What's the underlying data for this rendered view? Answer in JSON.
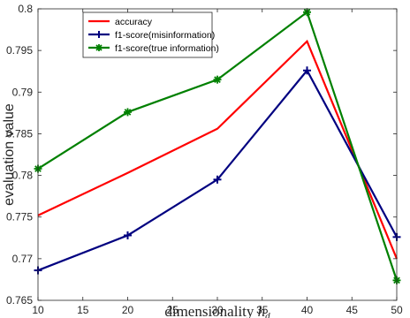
{
  "chart_data": {
    "type": "line",
    "title": "",
    "xlabel": "dimensionality",
    "xlabel_symbol": "h",
    "xlabel_subscript": "d",
    "ylabel": "evaluation value",
    "x": [
      10,
      20,
      30,
      40,
      50
    ],
    "xlim": [
      10,
      50
    ],
    "ylim": [
      0.765,
      0.8
    ],
    "xticks": [
      10,
      15,
      20,
      25,
      30,
      35,
      40,
      45,
      50
    ],
    "yticks": [
      0.765,
      0.77,
      0.775,
      0.78,
      0.785,
      0.79,
      0.795,
      0.8
    ],
    "ytick_labels": [
      "0.765",
      "0.77",
      "0.775",
      "0.78",
      "0.785",
      "0.79",
      "0.795",
      "0.8"
    ],
    "grid": false,
    "legend_position": "top-left",
    "series": [
      {
        "name": "accuracy",
        "values": [
          0.7752,
          0.7803,
          0.7856,
          0.7961,
          0.77
        ],
        "color": "#ff0000",
        "marker": "none"
      },
      {
        "name": "f1-score(misinformation)",
        "values": [
          0.7686,
          0.7728,
          0.7795,
          0.7926,
          0.7726
        ],
        "color": "#000080",
        "marker": "plus"
      },
      {
        "name": "f1-score(true information)",
        "values": [
          0.7808,
          0.7876,
          0.7915,
          0.7996,
          0.7674
        ],
        "color": "#008000",
        "marker": "asterisk"
      }
    ]
  }
}
